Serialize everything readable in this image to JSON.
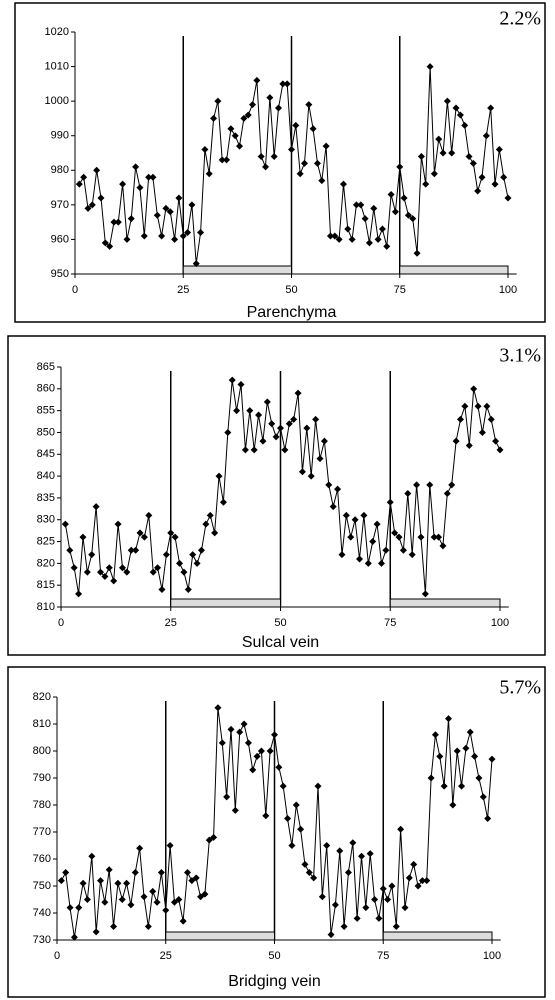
{
  "chart_data": [
    {
      "type": "line",
      "annotation": "2.2%",
      "xlabel": "Parenchyma",
      "color": "#000000",
      "x": [
        1,
        2,
        3,
        4,
        5,
        6,
        7,
        8,
        9,
        10,
        11,
        12,
        13,
        14,
        15,
        16,
        17,
        18,
        19,
        20,
        21,
        22,
        23,
        24,
        25,
        26,
        27,
        28,
        29,
        30,
        31,
        32,
        33,
        34,
        35,
        36,
        37,
        38,
        39,
        40,
        41,
        42,
        43,
        44,
        45,
        46,
        47,
        48,
        49,
        50,
        51,
        52,
        53,
        54,
        55,
        56,
        57,
        58,
        59,
        60,
        61,
        62,
        63,
        64,
        65,
        66,
        67,
        68,
        69,
        70,
        71,
        72,
        73,
        74,
        75,
        76,
        77,
        78,
        79,
        80,
        81,
        82,
        83,
        84,
        85,
        86,
        87,
        88,
        89,
        90,
        91,
        92,
        93,
        94,
        95,
        96,
        97,
        98,
        99,
        100
      ],
      "values": [
        976,
        978,
        969,
        970,
        980,
        972,
        959,
        958,
        965,
        965,
        976,
        960,
        966,
        981,
        975,
        961,
        978,
        978,
        967,
        961,
        969,
        968,
        960,
        972,
        961,
        962,
        970,
        953,
        962,
        986,
        979,
        995,
        1000,
        983,
        983,
        992,
        990,
        987,
        995,
        996,
        999,
        1006,
        984,
        981,
        1001,
        984,
        998,
        1005,
        1005,
        986,
        993,
        979,
        982,
        999,
        992,
        982,
        977,
        987,
        961,
        961,
        960,
        976,
        963,
        960,
        970,
        970,
        966,
        959,
        969,
        960,
        963,
        958,
        973,
        968,
        981,
        972,
        967,
        966,
        956,
        984,
        976,
        1010,
        979,
        989,
        985,
        1000,
        985,
        998,
        996,
        993,
        984,
        982,
        974,
        978,
        990,
        998,
        976,
        986,
        978,
        972
      ],
      "xlim": [
        0,
        102
      ],
      "ylim": [
        950,
        1020
      ],
      "xticks": [
        0,
        25,
        50,
        75,
        100
      ],
      "yticks": [
        950,
        960,
        970,
        980,
        990,
        1000,
        1010,
        1020
      ]
    },
    {
      "type": "line",
      "annotation": "3.1%",
      "xlabel": "Sulcal vein",
      "color": "#000000",
      "x": [
        1,
        2,
        3,
        4,
        5,
        6,
        7,
        8,
        9,
        10,
        11,
        12,
        13,
        14,
        15,
        16,
        17,
        18,
        19,
        20,
        21,
        22,
        23,
        24,
        25,
        26,
        27,
        28,
        29,
        30,
        31,
        32,
        33,
        34,
        35,
        36,
        37,
        38,
        39,
        40,
        41,
        42,
        43,
        44,
        45,
        46,
        47,
        48,
        49,
        50,
        51,
        52,
        53,
        54,
        55,
        56,
        57,
        58,
        59,
        60,
        61,
        62,
        63,
        64,
        65,
        66,
        67,
        68,
        69,
        70,
        71,
        72,
        73,
        74,
        75,
        76,
        77,
        78,
        79,
        80,
        81,
        82,
        83,
        84,
        85,
        86,
        87,
        88,
        89,
        90,
        91,
        92,
        93,
        94,
        95,
        96,
        97,
        98,
        99,
        100
      ],
      "values": [
        829,
        823,
        819,
        813,
        826,
        818,
        822,
        833,
        818,
        817,
        819,
        816,
        829,
        819,
        818,
        823,
        823,
        827,
        826,
        831,
        818,
        819,
        814,
        822,
        827,
        826,
        820,
        818,
        814,
        822,
        820,
        823,
        829,
        831,
        827,
        840,
        834,
        850,
        862,
        855,
        861,
        846,
        855,
        846,
        854,
        848,
        857,
        852,
        849,
        851,
        846,
        852,
        853,
        859,
        841,
        851,
        840,
        853,
        844,
        848,
        838,
        833,
        837,
        822,
        831,
        826,
        830,
        821,
        831,
        820,
        825,
        829,
        820,
        823,
        834,
        827,
        826,
        823,
        836,
        822,
        838,
        826,
        813,
        838,
        826,
        826,
        824,
        836,
        838,
        848,
        853,
        856,
        847,
        860,
        856,
        850,
        856,
        853,
        848,
        846
      ],
      "xlim": [
        0,
        102
      ],
      "ylim": [
        810,
        865
      ],
      "xticks": [
        0,
        25,
        50,
        75,
        100
      ],
      "yticks": [
        810,
        815,
        820,
        825,
        830,
        835,
        840,
        845,
        850,
        855,
        860,
        865
      ]
    },
    {
      "type": "line",
      "annotation": "5.7%",
      "xlabel": "Bridging vein",
      "color": "#000000",
      "x": [
        1,
        2,
        3,
        4,
        5,
        6,
        7,
        8,
        9,
        10,
        11,
        12,
        13,
        14,
        15,
        16,
        17,
        18,
        19,
        20,
        21,
        22,
        23,
        24,
        25,
        26,
        27,
        28,
        29,
        30,
        31,
        32,
        33,
        34,
        35,
        36,
        37,
        38,
        39,
        40,
        41,
        42,
        43,
        44,
        45,
        46,
        47,
        48,
        49,
        50,
        51,
        52,
        53,
        54,
        55,
        56,
        57,
        58,
        59,
        60,
        61,
        62,
        63,
        64,
        65,
        66,
        67,
        68,
        69,
        70,
        71,
        72,
        73,
        74,
        75,
        76,
        77,
        78,
        79,
        80,
        81,
        82,
        83,
        84,
        85,
        86,
        87,
        88,
        89,
        90,
        91,
        92,
        93,
        94,
        95,
        96,
        97,
        98,
        99,
        100
      ],
      "values": [
        752,
        755,
        742,
        731,
        742,
        751,
        745,
        761,
        733,
        752,
        744,
        756,
        735,
        751,
        745,
        751,
        743,
        755,
        764,
        746,
        735,
        748,
        744,
        755,
        741,
        765,
        744,
        745,
        737,
        755,
        752,
        753,
        746,
        747,
        767,
        768,
        816,
        803,
        783,
        808,
        778,
        807,
        810,
        803,
        793,
        798,
        800,
        776,
        800,
        806,
        794,
        787,
        775,
        765,
        780,
        771,
        758,
        755,
        753,
        787,
        746,
        765,
        732,
        743,
        763,
        735,
        755,
        766,
        738,
        761,
        742,
        762,
        745,
        738,
        749,
        745,
        750,
        735,
        771,
        742,
        753,
        758,
        750,
        752,
        752,
        790,
        806,
        798,
        787,
        812,
        780,
        800,
        787,
        801,
        807,
        798,
        790,
        783,
        775,
        797
      ],
      "xlim": [
        0,
        102
      ],
      "ylim": [
        730,
        820
      ],
      "xticks": [
        0,
        25,
        50,
        75,
        100
      ],
      "yticks": [
        730,
        740,
        750,
        760,
        770,
        780,
        790,
        800,
        810,
        820
      ]
    }
  ]
}
